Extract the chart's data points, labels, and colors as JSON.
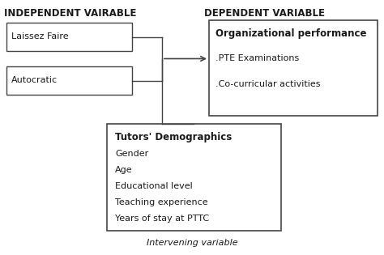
{
  "background_color": "#ffffff",
  "title_left": "INDEPENDENT VAIRABLE",
  "title_right": "DEPENDENT VARIABLE",
  "box_left_top_label": "Laissez Faire",
  "box_left_bottom_label": "Autocratic",
  "box_right_title": "Organizational performance",
  "box_right_items": [
    ".PTE Examinations",
    ".Co-curricular activities"
  ],
  "box_bottom_title": "Tutors' Demographics",
  "box_bottom_items": [
    "Gender",
    "Age",
    "Educational level",
    "Teaching experience",
    "Years of stay at PTTC"
  ],
  "intervening_label": "Intervening variable",
  "line_color": "#444444",
  "text_color": "#1a1a1a",
  "box_edge_color": "#444444",
  "fig_w": 4.74,
  "fig_h": 3.15,
  "dpi": 100
}
